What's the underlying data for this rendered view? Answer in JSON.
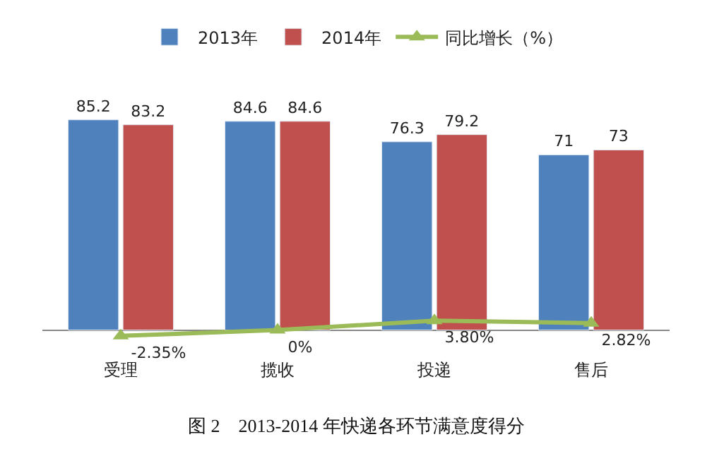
{
  "chart_data": {
    "type": "bar",
    "title": "图 2　2013-2014 年快递各环节满意度得分",
    "categories": [
      "受理",
      "揽收",
      "投递",
      "售后"
    ],
    "series": [
      {
        "name": "2013年",
        "color": "#4f81bd",
        "values": [
          85.2,
          84.6,
          76.3,
          71
        ]
      },
      {
        "name": "2014年",
        "color": "#c0504d",
        "values": [
          83.2,
          84.6,
          79.2,
          73
        ]
      },
      {
        "name": "同比增长（%）",
        "type": "line",
        "color": "#9bbb59",
        "marker": "triangle",
        "values": [
          -2.35,
          0,
          3.8,
          2.82
        ],
        "value_labels": [
          "-2.35%",
          "0%",
          "3.80%",
          "2.82%"
        ]
      }
    ],
    "data_labels": true,
    "legend": "top",
    "tick_labels": "x"
  }
}
